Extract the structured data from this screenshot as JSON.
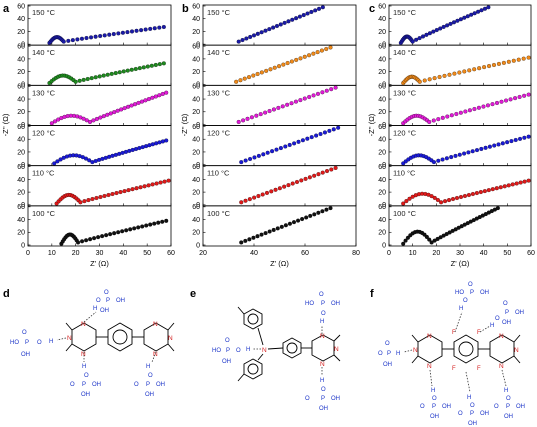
{
  "panels": {
    "a": "a",
    "b": "b",
    "c": "c",
    "d": "d",
    "e": "e",
    "f": "f"
  },
  "chart_data": [
    {
      "panel": "a",
      "type": "scatter",
      "xlabel": "Z' (Ω)",
      "ylabel": "-Z'' (Ω)",
      "xlim": [
        0,
        60
      ],
      "ylim": [
        0,
        60
      ],
      "xticks": [
        0,
        10,
        20,
        30,
        40,
        50,
        60
      ],
      "yticks": [
        0,
        20,
        40,
        60
      ],
      "strips": [
        {
          "name": "150 °C",
          "color": "#1a1aa8",
          "onset": 9,
          "amp": 9,
          "knee": 15,
          "end": 57,
          "endy": 27
        },
        {
          "name": "140 °C",
          "color": "#1f8a1f",
          "onset": 9,
          "amp": 12,
          "knee": 20,
          "end": 57,
          "endy": 33
        },
        {
          "name": "130 °C",
          "color": "#e01ad6",
          "onset": 10,
          "amp": 12,
          "knee": 26,
          "end": 58,
          "endy": 50
        },
        {
          "name": "120 °C",
          "color": "#1a1ad6",
          "onset": 11,
          "amp": 13,
          "knee": 27,
          "end": 58,
          "endy": 38
        },
        {
          "name": "110 °C",
          "color": "#e01a1a",
          "onset": 12,
          "amp": 14,
          "knee": 22,
          "end": 59,
          "endy": 38
        },
        {
          "name": "100 °C",
          "color": "#111111",
          "onset": 14,
          "amp": 15,
          "knee": 21,
          "end": 58,
          "endy": 38
        }
      ]
    },
    {
      "panel": "b",
      "type": "scatter",
      "xlabel": "Z' (Ω)",
      "ylabel": "-Z'' (Ω)",
      "xlim": [
        20,
        80
      ],
      "ylim": [
        0,
        60
      ],
      "xticks": [
        20,
        40,
        60,
        80
      ],
      "yticks": [
        0,
        20,
        40,
        60
      ],
      "strips": [
        {
          "name": "150 °C",
          "color": "#1a1aa8",
          "x0": 34,
          "y0": 4,
          "x1": 67,
          "y1": 58
        },
        {
          "name": "140 °C",
          "color": "#f08a1a",
          "x0": 33,
          "y0": 4,
          "x1": 70,
          "y1": 58
        },
        {
          "name": "130 °C",
          "color": "#e01ad6",
          "x0": 34,
          "y0": 4,
          "x1": 72,
          "y1": 58
        },
        {
          "name": "120 °C",
          "color": "#1a1ad6",
          "x0": 35,
          "y0": 4,
          "x1": 73,
          "y1": 58
        },
        {
          "name": "110 °C",
          "color": "#e01a1a",
          "x0": 35,
          "y0": 4,
          "x1": 72,
          "y1": 58
        },
        {
          "name": "100 °C",
          "color": "#111111",
          "x0": 35,
          "y0": 4,
          "x1": 70,
          "y1": 58
        }
      ]
    },
    {
      "panel": "c",
      "type": "scatter",
      "xlabel": "Z' (Ω)",
      "ylabel": "-Z'' (Ω)",
      "xlim": [
        0,
        60
      ],
      "ylim": [
        0,
        60
      ],
      "xticks": [
        0,
        10,
        20,
        30,
        40,
        50,
        60
      ],
      "yticks": [
        0,
        20,
        40,
        60
      ],
      "strips": [
        {
          "name": "150 °C",
          "color": "#1a1aa8",
          "onset": 5,
          "amp": 10,
          "knee": 10,
          "end": 42,
          "endy": 58
        },
        {
          "name": "140 °C",
          "color": "#f08a1a",
          "onset": 6,
          "amp": 10,
          "knee": 13,
          "end": 59,
          "endy": 42
        },
        {
          "name": "130 °C",
          "color": "#e01ad6",
          "onset": 6,
          "amp": 12,
          "knee": 17,
          "end": 59,
          "endy": 47
        },
        {
          "name": "120 °C",
          "color": "#1a1ad6",
          "onset": 6,
          "amp": 13,
          "knee": 19,
          "end": 59,
          "endy": 44
        },
        {
          "name": "110 °C",
          "color": "#e01a1a",
          "onset": 6,
          "amp": 16,
          "knee": 22,
          "end": 59,
          "endy": 38
        },
        {
          "name": "100 °C",
          "color": "#111111",
          "onset": 6,
          "amp": 20,
          "knee": 18,
          "end": 46,
          "endy": 58
        }
      ]
    }
  ],
  "chem": {
    "N": "N",
    "H": "H",
    "P": "P",
    "O": "O",
    "OH": "OH",
    "HO": "HO",
    "F": "F"
  }
}
